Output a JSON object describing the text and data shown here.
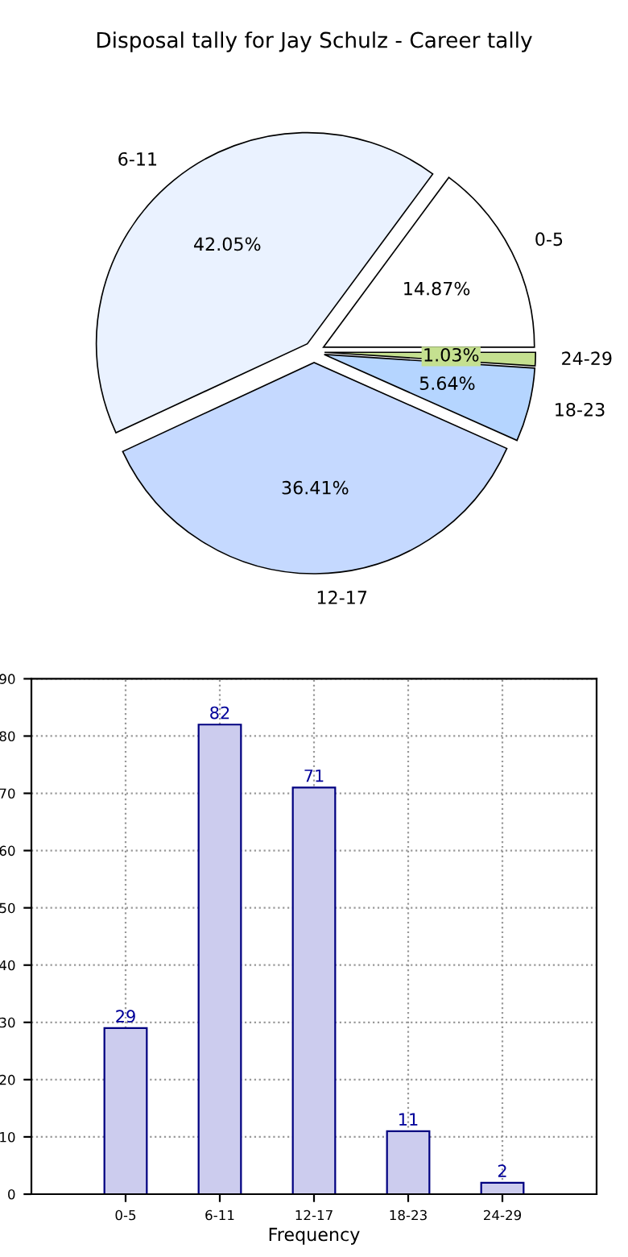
{
  "chart_data": [
    {
      "type": "pie",
      "title": "Disposal tally for Jay Schulz - Career tally",
      "categories": [
        "0-5",
        "6-11",
        "12-17",
        "18-23",
        "24-29"
      ],
      "values": [
        14.87,
        42.05,
        36.41,
        5.64,
        1.03
      ],
      "value_labels": [
        "14.87%",
        "42.05%",
        "36.41%",
        "5.64%",
        "1.03%"
      ],
      "colors": [
        "#ffffff",
        "#eaf2ff",
        "#c5d9ff",
        "#b5d5ff",
        "#c5e090"
      ]
    },
    {
      "type": "bar",
      "xlabel": "Frequency",
      "categories": [
        "0-5",
        "6-11",
        "12-17",
        "18-23",
        "24-29"
      ],
      "values": [
        29,
        82,
        71,
        11,
        2
      ],
      "color": "#ccccee",
      "ylim": [
        0,
        90
      ],
      "yticks": [
        0,
        10,
        20,
        30,
        40,
        50,
        60,
        70,
        80,
        90
      ],
      "grid": true,
      "data_labels": true
    }
  ]
}
